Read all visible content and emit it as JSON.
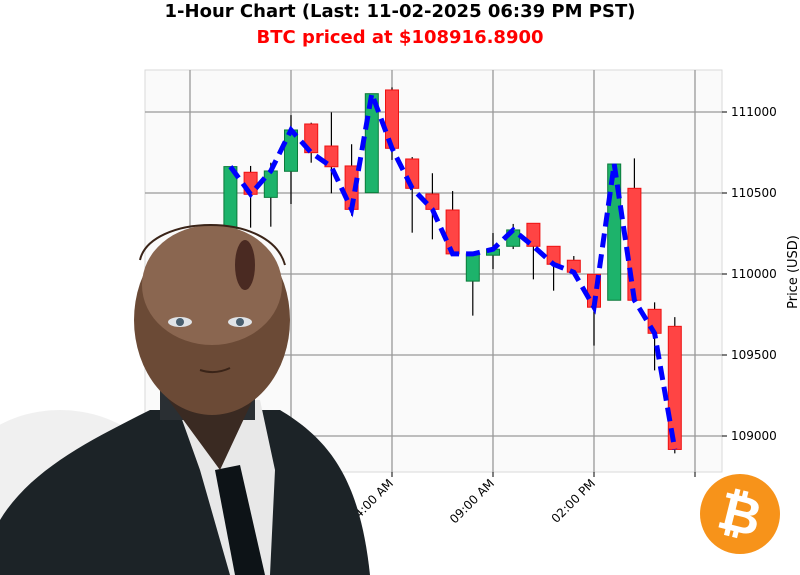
{
  "chart_data": {
    "type": "candlestick",
    "title": "1-Hour Chart (Last: 11-02-2025 06:39 PM PST)",
    "subtitle": "BTC priced at $108916.8900",
    "ylabel": "Price (USD)",
    "xlabel": "",
    "ylim": [
      108800,
      111350
    ],
    "yticks": [
      109000,
      109500,
      110000,
      110500,
      111000
    ],
    "xticks": [
      {
        "time": "04:00 AM",
        "label": "04:00 AM"
      },
      {
        "time": "09:00 AM",
        "label": "09:00 AM"
      },
      {
        "time": "02:00 PM",
        "label": "02:00 PM"
      },
      {
        "time": "07:00 PM",
        "label": ""
      }
    ],
    "grid": true,
    "up_color": "#1db36b",
    "down_color": "#ff4444",
    "close_line_color": "#0000ff",
    "candles": [
      {
        "time": "08:00 PM",
        "open": 110250,
        "high": 110663,
        "low": 110200,
        "close": 110663
      },
      {
        "time": "09:00 PM",
        "open": 110628,
        "high": 110667,
        "low": 110286,
        "close": 110492
      },
      {
        "time": "10:00 PM",
        "open": 110473,
        "high": 110687,
        "low": 110292,
        "close": 110636
      },
      {
        "time": "11:00 PM",
        "open": 110634,
        "high": 110981,
        "low": 110432,
        "close": 110889
      },
      {
        "time": "12:00 AM",
        "open": 110926,
        "high": 110934,
        "low": 110687,
        "close": 110749
      },
      {
        "time": "01:00 AM",
        "open": 110790,
        "high": 110998,
        "low": 110498,
        "close": 110662
      },
      {
        "time": "02:00 AM",
        "open": 110667,
        "high": 110801,
        "low": 110360,
        "close": 110399
      },
      {
        "time": "03:00 AM",
        "open": 110502,
        "high": 111113,
        "low": 110502,
        "close": 111113
      },
      {
        "time": "04:00 AM",
        "open": 111136,
        "high": 111152,
        "low": 110704,
        "close": 110776
      },
      {
        "time": "05:00 AM",
        "open": 110710,
        "high": 110722,
        "low": 110255,
        "close": 110529
      },
      {
        "time": "06:00 AM",
        "open": 110494,
        "high": 110622,
        "low": 110214,
        "close": 110399
      },
      {
        "time": "07:00 AM",
        "open": 110395,
        "high": 110512,
        "low": 110124,
        "close": 110124
      },
      {
        "time": "08:00 AM",
        "open": 109956,
        "high": 110124,
        "low": 109743,
        "close": 110124
      },
      {
        "time": "09:00 AM",
        "open": 110116,
        "high": 110253,
        "low": 110031,
        "close": 110153
      },
      {
        "time": "10:00 AM",
        "open": 110171,
        "high": 110309,
        "low": 110154,
        "close": 110272
      },
      {
        "time": "11:00 AM",
        "open": 110313,
        "high": 110313,
        "low": 109967,
        "close": 110171
      },
      {
        "time": "12:00 PM",
        "open": 110171,
        "high": 110171,
        "low": 109897,
        "close": 110060
      },
      {
        "time": "01:00 PM",
        "open": 110085,
        "high": 110111,
        "low": 110011,
        "close": 110011
      },
      {
        "time": "02:00 PM",
        "open": 109998,
        "high": 109998,
        "low": 109558,
        "close": 109795
      },
      {
        "time": "03:00 PM",
        "open": 109838,
        "high": 110679,
        "low": 109838,
        "close": 110679
      },
      {
        "time": "04:00 PM",
        "open": 110529,
        "high": 110714,
        "low": 109838,
        "close": 109838
      },
      {
        "time": "05:00 PM",
        "open": 109782,
        "high": 109825,
        "low": 109405,
        "close": 109634
      },
      {
        "time": "06:00 PM",
        "open": 109677,
        "high": 109734,
        "low": 108893,
        "close": 108917
      }
    ]
  },
  "overlay": {
    "android_image": "android-in-suit",
    "logo": "bitcoin-logo",
    "logo_color": "#f7931a"
  }
}
